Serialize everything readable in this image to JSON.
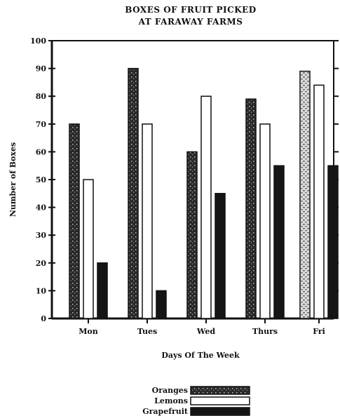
{
  "chart_data": {
    "type": "bar",
    "title": [
      "BOXES OF FRUIT PICKED",
      "AT FARAWAY FARMS"
    ],
    "xlabel": "Days Of The Week",
    "ylabel": "Number of Boxes",
    "categories": [
      "Mon",
      "Tues",
      "Wed",
      "Thurs",
      "Fri"
    ],
    "series": [
      {
        "name": "Oranges",
        "values": [
          70,
          90,
          60,
          79,
          89
        ],
        "color": "#2a2a2a",
        "pattern": "speckled-dark"
      },
      {
        "name": "Lemons",
        "values": [
          50,
          70,
          80,
          70,
          84
        ],
        "color": "#ffffff",
        "pattern": "outline"
      },
      {
        "name": "Grapefruit",
        "values": [
          20,
          10,
          45,
          55,
          55
        ],
        "color": "#111111",
        "pattern": "solid-dark"
      }
    ],
    "ylim": [
      0,
      100
    ],
    "yticks": [
      0,
      10,
      20,
      30,
      40,
      50,
      60,
      70,
      80,
      90,
      100
    ],
    "grid": false,
    "legend_position": "bottom-center"
  }
}
